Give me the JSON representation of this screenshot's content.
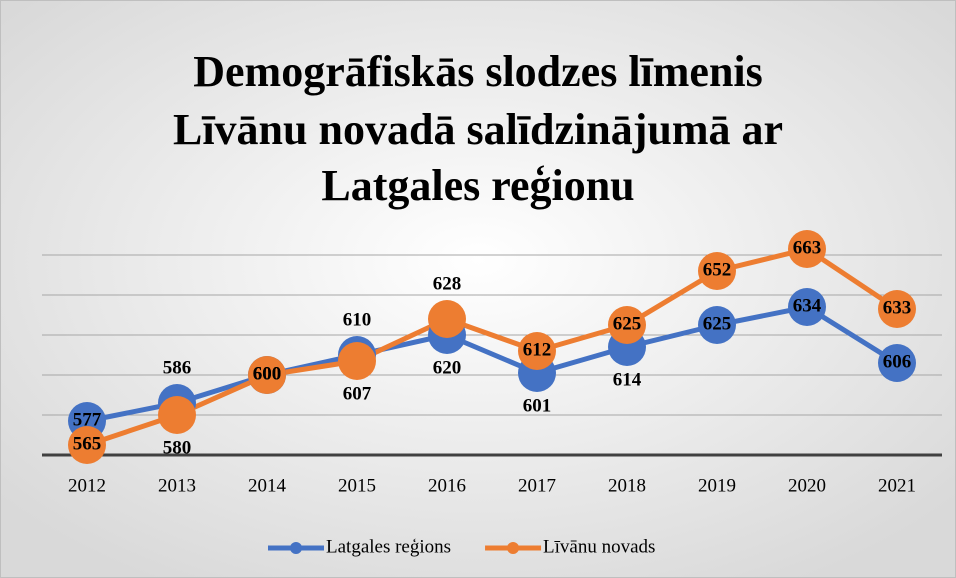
{
  "chart_data": {
    "type": "line",
    "title": [
      "Demogrāfiskās slodzes līmenis",
      "Līvānu novadā salīdzinājumā ar",
      "Latgales reģionu"
    ],
    "categories": [
      "2012",
      "2013",
      "2014",
      "2015",
      "2016",
      "2017",
      "2018",
      "2019",
      "2020",
      "2021"
    ],
    "series": [
      {
        "name": "Latgales reģions",
        "color": "#4472c4",
        "values": [
          577,
          586,
          600,
          610,
          620,
          601,
          614,
          625,
          634,
          606
        ]
      },
      {
        "name": "Līvānu novads",
        "color": "#ed7d31",
        "values": [
          565,
          580,
          600,
          607,
          628,
          612,
          625,
          652,
          663,
          633
        ]
      }
    ],
    "ylim": [
      560,
      680
    ],
    "yticks": [
      560,
      580,
      600,
      620,
      640,
      660
    ],
    "grid": true,
    "legend": "bottom"
  }
}
